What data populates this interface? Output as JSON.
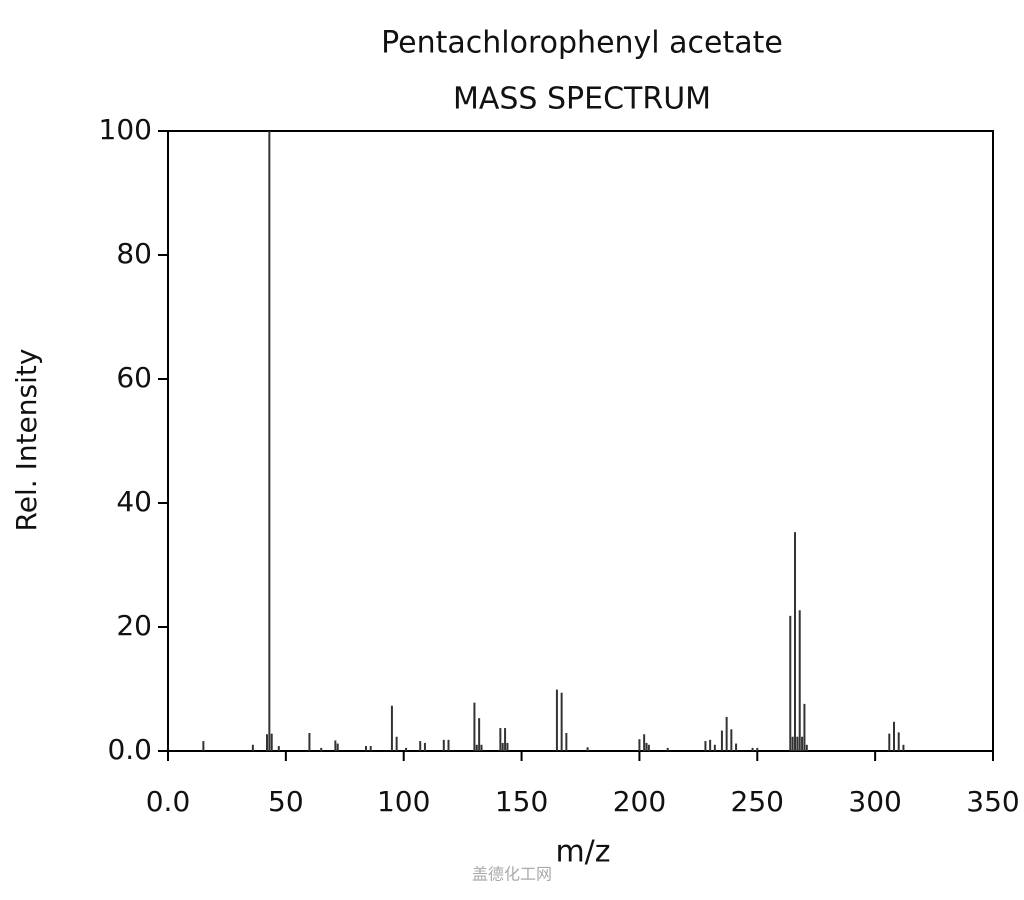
{
  "chart_data": {
    "type": "bar",
    "title": "Pentachlorophenyl acetate",
    "subtitle": "MASS SPECTRUM",
    "x_label": "m/z",
    "y_label": "Rel. Intensity",
    "watermark": "盖德化工网",
    "color": "#333333",
    "xlim": [
      0,
      350
    ],
    "ylim": [
      0,
      100
    ],
    "xticks": [
      {
        "value": 0,
        "label": "0.0"
      },
      50,
      100,
      150,
      200,
      250,
      300,
      350
    ],
    "yticks": [
      {
        "value": 0,
        "label": "0.0"
      },
      20,
      40,
      60,
      80,
      100
    ],
    "x": [
      15,
      36,
      42,
      43,
      44,
      47,
      60,
      65,
      71,
      72,
      84,
      86,
      95,
      97,
      101,
      107,
      109,
      117,
      119,
      130,
      131,
      132,
      133,
      141,
      142,
      143,
      144,
      165,
      167,
      169,
      178,
      200,
      202,
      203,
      204,
      212,
      228,
      230,
      232,
      235,
      237,
      239,
      241,
      248,
      250,
      264,
      265,
      266,
      267,
      268,
      269,
      270,
      271,
      306,
      308,
      310,
      312
    ],
    "values": [
      1.6,
      1.0,
      2.7,
      100,
      2.8,
      0.8,
      2.9,
      0.5,
      1.7,
      1.2,
      0.8,
      0.8,
      7.3,
      2.3,
      0.5,
      1.6,
      1.3,
      1.8,
      1.8,
      7.8,
      1.0,
      5.3,
      1.0,
      3.7,
      1.3,
      3.7,
      1.3,
      9.9,
      9.4,
      2.9,
      0.6,
      1.9,
      2.7,
      1.3,
      1.0,
      0.5,
      1.6,
      1.8,
      1.0,
      3.3,
      5.5,
      3.5,
      1.2,
      0.5,
      0.5,
      21.8,
      2.3,
      35.3,
      2.3,
      22.7,
      2.3,
      7.6,
      1.0,
      2.8,
      4.7,
      3.0,
      1.0
    ]
  }
}
